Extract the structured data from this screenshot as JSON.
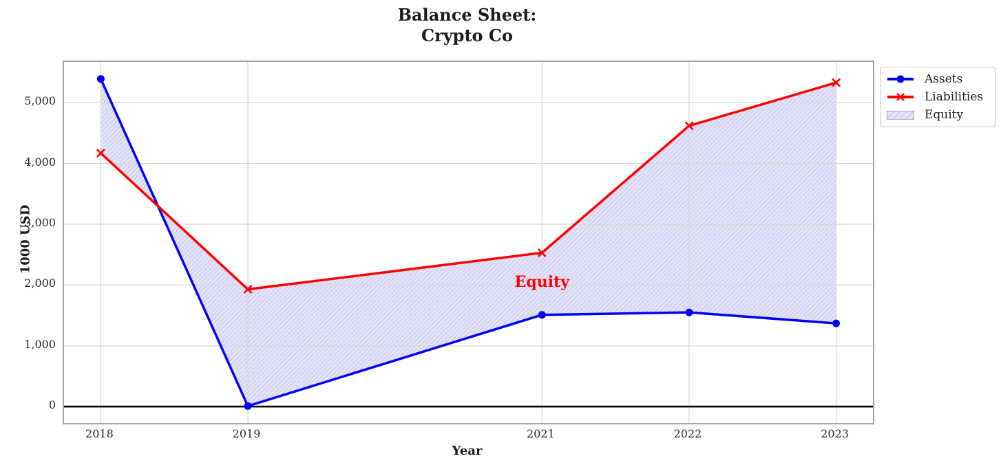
{
  "figure": {
    "title_line1": "Balance Sheet:",
    "title_line2": "Crypto Co",
    "xlabel": "Year",
    "ylabel": "1000 USD"
  },
  "chart_data": {
    "type": "line",
    "title": "Balance Sheet: Crypto Co",
    "xlabel": "Year",
    "ylabel": "1000 USD",
    "x": [
      2018,
      2019,
      2021,
      2022,
      2023
    ],
    "series": [
      {
        "name": "Assets",
        "color": "#0000ff",
        "marker": "circle",
        "line_width": 3.5,
        "values": [
          5390,
          10,
          1510,
          1550,
          1370
        ]
      },
      {
        "name": "Liabilities",
        "color": "#ff0000",
        "marker": "x",
        "line_width": 3.5,
        "values": [
          4170,
          1930,
          2530,
          4620,
          5330
        ]
      }
    ],
    "fill_between": {
      "label": "Equity",
      "between": [
        "Assets",
        "Liabilities"
      ],
      "face_color": "#e4e4f8",
      "hatch": "/",
      "hatch_color": "#c8c8ef"
    },
    "annotation": {
      "text": "Equity",
      "x": 2021,
      "y": 2040,
      "color": "#ff0000",
      "bold": true
    },
    "xlim": [
      2017.75,
      2023.25
    ],
    "ylim": [
      -270,
      5670
    ],
    "xticks": [
      {
        "value": 2018,
        "label": "2018"
      },
      {
        "value": 2019,
        "label": "2019"
      },
      {
        "value": 2021,
        "label": "2021"
      },
      {
        "value": 2022,
        "label": "2022"
      },
      {
        "value": 2023,
        "label": "2023"
      }
    ],
    "yticks": [
      {
        "value": 0,
        "label": "0"
      },
      {
        "value": 1000,
        "label": "1,000"
      },
      {
        "value": 2000,
        "label": "2,000"
      },
      {
        "value": 3000,
        "label": "3,000"
      },
      {
        "value": 4000,
        "label": "4,000"
      },
      {
        "value": 5000,
        "label": "5,000"
      }
    ],
    "grid": true,
    "zero_line": {
      "y": 0,
      "color": "#000000",
      "width": 2.6
    },
    "legend_position": "outside upper right"
  },
  "legend": {
    "items": [
      {
        "label": "Assets",
        "sample": "line-circle",
        "color": "#0000ff"
      },
      {
        "label": "Liabilities",
        "sample": "line-x",
        "color": "#ff0000"
      },
      {
        "label": "Equity",
        "sample": "hatched-patch",
        "face_color": "#e4e4f8",
        "hatch_color": "#c8c8ef"
      }
    ]
  },
  "colors": {
    "grid": "#d6d6d6",
    "spine": "#a5a5a5",
    "text": "#1c1c1c",
    "background": "#ffffff"
  }
}
